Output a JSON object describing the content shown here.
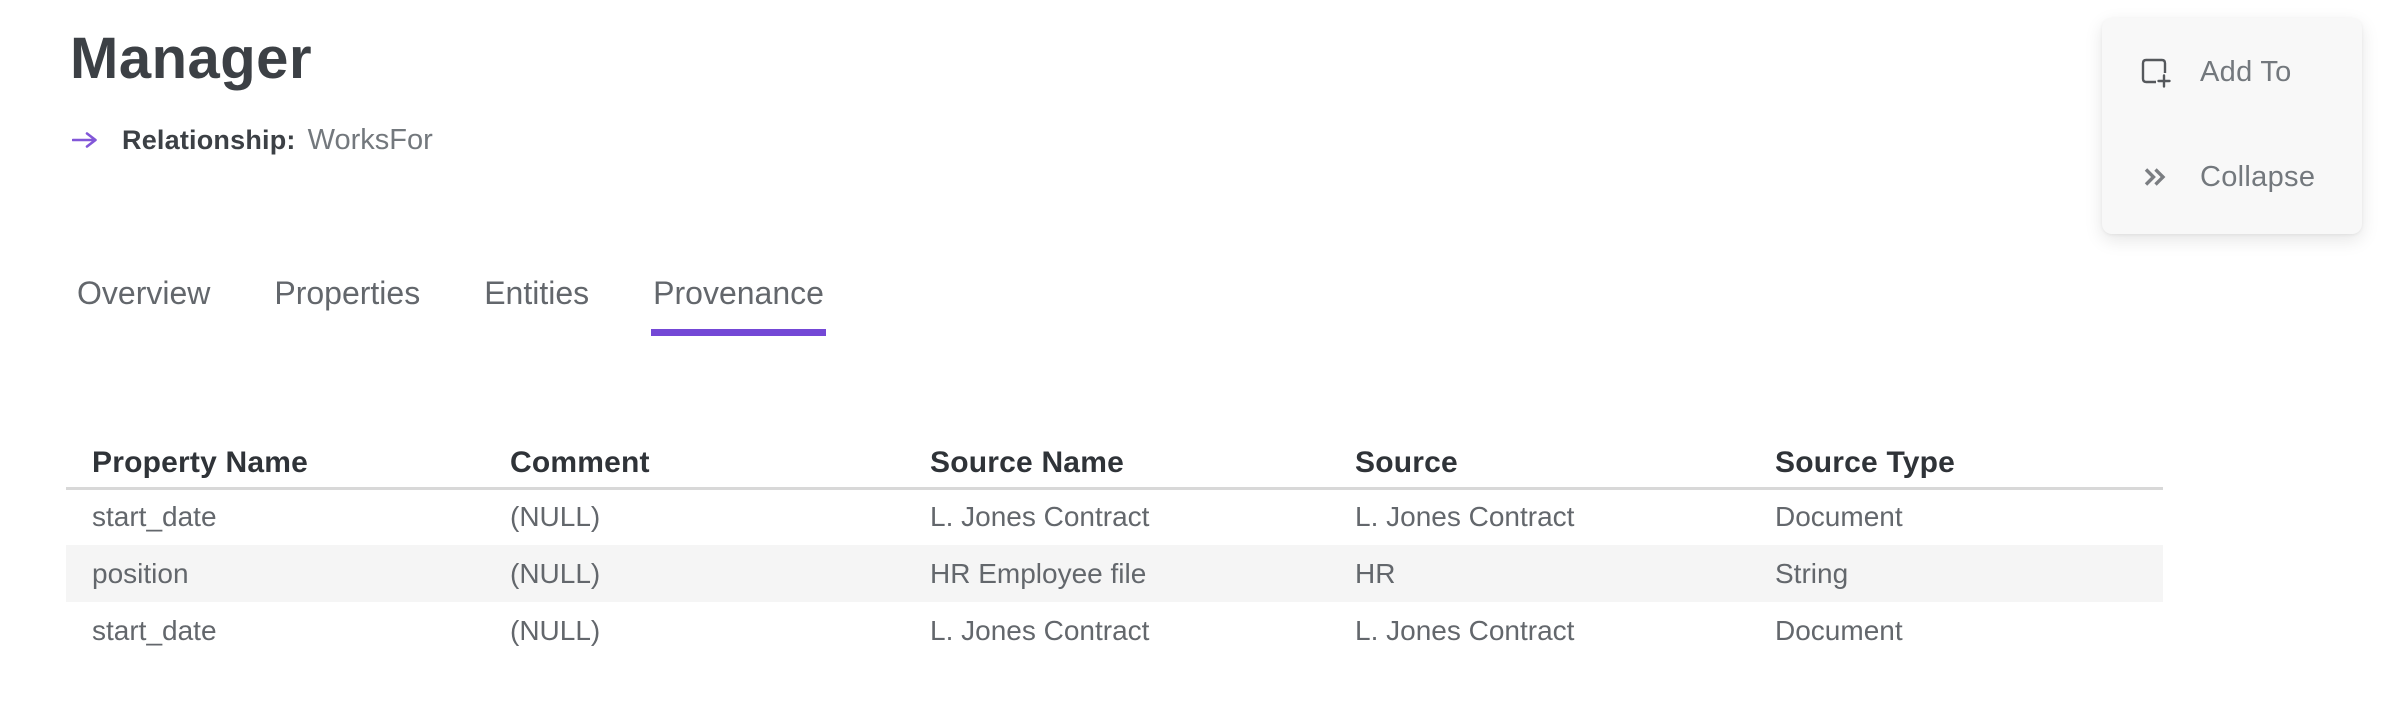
{
  "page": {
    "title": "Manager"
  },
  "relationship": {
    "label": "Relationship:",
    "value": "WorksFor"
  },
  "tabs": {
    "items": [
      "Overview",
      "Properties",
      "Entities",
      "Provenance"
    ],
    "active": "Provenance"
  },
  "table": {
    "columns": [
      "Property Name",
      "Comment",
      "Source Name",
      "Source",
      "Source Type"
    ],
    "rows": [
      [
        "start_date",
        "(NULL)",
        "L. Jones Contract",
        "L. Jones Contract",
        "Document"
      ],
      [
        "position",
        "(NULL)",
        "HR Employee file",
        "HR",
        "String"
      ],
      [
        "start_date",
        "(NULL)",
        "L. Jones Contract",
        "L. Jones Contract",
        "Document"
      ]
    ]
  },
  "actions": {
    "add_to": {
      "label": "Add To",
      "icon": "add-to-icon"
    },
    "collapse": {
      "label": "Collapse",
      "icon": "double-chevron-right-icon"
    }
  },
  "colors": {
    "accent": "#7448d6",
    "title_text": "#3c4045",
    "header_text": "#2f3338",
    "body_text": "#63676c",
    "muted_text": "#73787d",
    "zebra_row": "#f5f5f5",
    "panel_bg": "#f8f8f8",
    "divider": "#d8d8d8"
  }
}
